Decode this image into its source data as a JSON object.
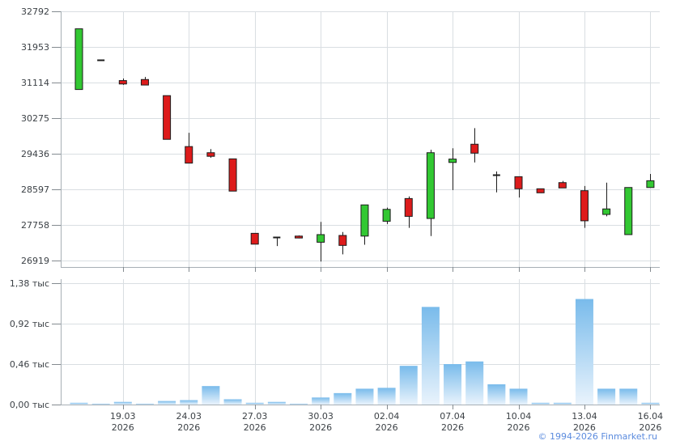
{
  "footer": {
    "copyright": "© 1994-2026 Finmarket.ru"
  },
  "colors": {
    "candle_up": "#32C832",
    "candle_down": "#DD1B1B",
    "candle_outline": "#1C1C1C",
    "volume_bar_top": "#79BBEB",
    "volume_bar_bottom": "#E9F3FC",
    "grid": "#D9DEE2",
    "axis": "#A7AFB5",
    "tick": "#848B90",
    "tick_text": "#3C4146",
    "link": "#5B8BDE"
  },
  "chart_data": [
    {
      "type": "candlestick",
      "title": "",
      "xlabel": "",
      "ylabel": "",
      "grid": true,
      "ylim": [
        26919,
        32792
      ],
      "y_ticks": [
        {
          "value": 32792,
          "label": "32792"
        },
        {
          "value": 31953,
          "label": "31953"
        },
        {
          "value": 31114,
          "label": "31114"
        },
        {
          "value": 30275,
          "label": "30275"
        },
        {
          "value": 29436,
          "label": "29436"
        },
        {
          "value": 28597,
          "label": "28597"
        },
        {
          "value": 27758,
          "label": "27758"
        },
        {
          "value": 26919,
          "label": "26919"
        }
      ],
      "x_labels": [
        {
          "index": 2,
          "line1": "19.03",
          "line2": "2026"
        },
        {
          "index": 5,
          "line1": "24.03",
          "line2": "2026"
        },
        {
          "index": 8,
          "line1": "27.03",
          "line2": "2026"
        },
        {
          "index": 11,
          "line1": "30.03",
          "line2": "2026"
        },
        {
          "index": 14,
          "line1": "02.04",
          "line2": "2026"
        },
        {
          "index": 17,
          "line1": "07.04",
          "line2": "2026"
        },
        {
          "index": 20,
          "line1": "10.04",
          "line2": "2026"
        },
        {
          "index": 23,
          "line1": "13.04",
          "line2": "2026"
        },
        {
          "index": 26,
          "line1": "16.04",
          "line2": "2026"
        }
      ],
      "candles": [
        {
          "date": "17.03.2026",
          "open": 30950,
          "high": 32380,
          "low": 30950,
          "close": 32380
        },
        {
          "date": "18.03.2026",
          "open": 31650,
          "high": 31650,
          "low": 31650,
          "close": 31650
        },
        {
          "date": "19.03.2026",
          "open": 31160,
          "high": 31210,
          "low": 31060,
          "close": 31080
        },
        {
          "date": "20.03.2026",
          "open": 31185,
          "high": 31245,
          "low": 31050,
          "close": 31055
        },
        {
          "date": "23.03.2026",
          "open": 30805,
          "high": 30805,
          "low": 29775,
          "close": 29775
        },
        {
          "date": "24.03.2026",
          "open": 29605,
          "high": 29930,
          "low": 29210,
          "close": 29215
        },
        {
          "date": "25.03.2026",
          "open": 29460,
          "high": 29545,
          "low": 29340,
          "close": 29375
        },
        {
          "date": "26.03.2026",
          "open": 29315,
          "high": 29315,
          "low": 28555,
          "close": 28555
        },
        {
          "date": "27.03.2026",
          "open": 27560,
          "high": 27560,
          "low": 27305,
          "close": 27305
        },
        {
          "date": "28.03.2026",
          "open": 27470,
          "high": 27470,
          "low": 27260,
          "close": 27470
        },
        {
          "date": "29.03.2026",
          "open": 27495,
          "high": 27510,
          "low": 27440,
          "close": 27450
        },
        {
          "date": "30.03.2026",
          "open": 27350,
          "high": 27830,
          "low": 26895,
          "close": 27530
        },
        {
          "date": "31.03.2026",
          "open": 27510,
          "high": 27590,
          "low": 27065,
          "close": 27275
        },
        {
          "date": "01.04.2026",
          "open": 27495,
          "high": 28230,
          "low": 27290,
          "close": 28230
        },
        {
          "date": "02.04.2026",
          "open": 27845,
          "high": 28165,
          "low": 27780,
          "close": 28125
        },
        {
          "date": "03.04.2026",
          "open": 28380,
          "high": 28430,
          "low": 27690,
          "close": 27960
        },
        {
          "date": "06.04.2026",
          "open": 27910,
          "high": 29530,
          "low": 27495,
          "close": 29460
        },
        {
          "date": "07.04.2026",
          "open": 29230,
          "high": 29565,
          "low": 28580,
          "close": 29310
        },
        {
          "date": "08.04.2026",
          "open": 29660,
          "high": 30040,
          "low": 29230,
          "close": 29450
        },
        {
          "date": "09.04.2026",
          "open": 28940,
          "high": 29020,
          "low": 28525,
          "close": 28940
        },
        {
          "date": "10.04.2026",
          "open": 28895,
          "high": 28895,
          "low": 28405,
          "close": 28610
        },
        {
          "date": "11.04.2026",
          "open": 28610,
          "high": 28615,
          "low": 28510,
          "close": 28515
        },
        {
          "date": "12.04.2026",
          "open": 28755,
          "high": 28795,
          "low": 28625,
          "close": 28630
        },
        {
          "date": "13.04.2026",
          "open": 28565,
          "high": 28675,
          "low": 27690,
          "close": 27855
        },
        {
          "date": "14.04.2026",
          "open": 28005,
          "high": 28755,
          "low": 27960,
          "close": 28135
        },
        {
          "date": "15.04.2026",
          "open": 27530,
          "high": 28640,
          "low": 27530,
          "close": 28640
        },
        {
          "date": "16.04.2026",
          "open": 28640,
          "high": 28960,
          "low": 28640,
          "close": 28800
        }
      ]
    },
    {
      "type": "bar",
      "title": "",
      "xlabel": "",
      "ylabel": "тыс",
      "grid": true,
      "ylim": [
        0,
        1.53
      ],
      "y_ticks": [
        {
          "value": 1.38,
          "label": "1,38 тыс"
        },
        {
          "value": 0.92,
          "label": "0,92 тыс"
        },
        {
          "value": 0.46,
          "label": "0,46 тыс"
        },
        {
          "value": 0.0,
          "label": "0,00 тыс"
        }
      ],
      "categories": [
        "17.03.2026",
        "18.03.2026",
        "19.03.2026",
        "20.03.2026",
        "23.03.2026",
        "24.03.2026",
        "25.03.2026",
        "26.03.2026",
        "27.03.2026",
        "28.03.2026",
        "29.03.2026",
        "30.03.2026",
        "31.03.2026",
        "01.04.2026",
        "02.04.2026",
        "03.04.2026",
        "06.04.2026",
        "07.04.2026",
        "08.04.2026",
        "09.04.2026",
        "10.04.2026",
        "11.04.2026",
        "12.04.2026",
        "13.04.2026",
        "14.04.2026",
        "15.04.2026",
        "16.04.2026"
      ],
      "values": [
        0.02,
        0.01,
        0.03,
        0.01,
        0.04,
        0.05,
        0.21,
        0.06,
        0.02,
        0.03,
        0.01,
        0.08,
        0.13,
        0.18,
        0.19,
        0.44,
        1.11,
        0.46,
        0.49,
        0.23,
        0.18,
        0.02,
        0.02,
        1.2,
        0.18,
        0.18,
        0.02
      ]
    }
  ]
}
